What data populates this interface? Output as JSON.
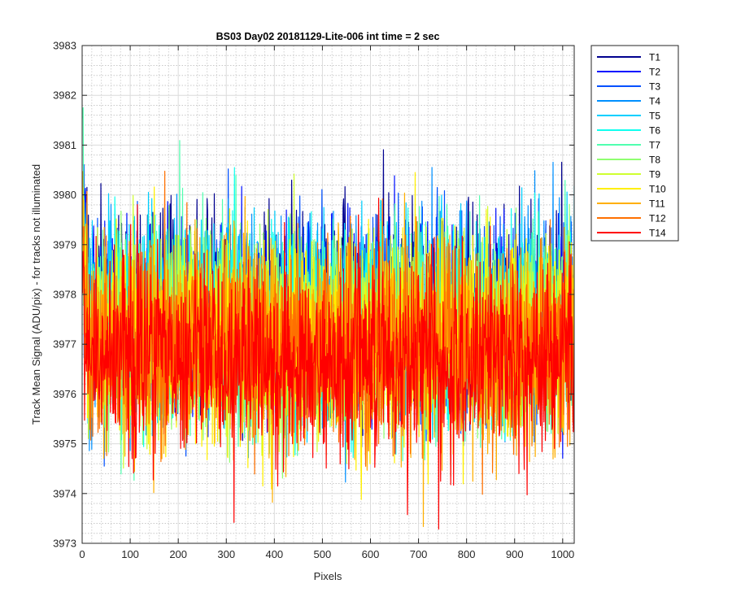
{
  "chart_data": {
    "type": "line",
    "title": "BS03 Day02 20181129-Lite-006 int time = 2 sec",
    "xlabel": "Pixels",
    "ylabel": "Track Mean Signal (ADU/pix) - for tracks not illuminated",
    "xlim": [
      0,
      1024
    ],
    "ylim": [
      3973,
      3983
    ],
    "x_ticks": [
      0,
      100,
      200,
      300,
      400,
      500,
      600,
      700,
      800,
      900,
      1000
    ],
    "y_ticks": [
      3973,
      3974,
      3975,
      3976,
      3977,
      3978,
      3979,
      3980,
      3981,
      3982,
      3983
    ],
    "grid": true,
    "minor_grid": true,
    "legend_position": "outside-top-right",
    "points_per_series": 1024,
    "series": [
      {
        "name": "T1",
        "color": "#00008f",
        "mean": 3977.7,
        "noise_sd": 0.95,
        "min": 3975.0,
        "max": 3981.1
      },
      {
        "name": "T2",
        "color": "#0010ff",
        "mean": 3977.6,
        "noise_sd": 0.95,
        "min": 3974.2,
        "max": 3981.5
      },
      {
        "name": "T3",
        "color": "#0050ff",
        "mean": 3977.5,
        "noise_sd": 0.95,
        "min": 3974.3,
        "max": 3980.9
      },
      {
        "name": "T4",
        "color": "#0090ff",
        "mean": 3977.5,
        "noise_sd": 0.95,
        "min": 3974.0,
        "max": 3980.8
      },
      {
        "name": "T5",
        "color": "#00cfff",
        "mean": 3977.5,
        "noise_sd": 0.95,
        "min": 3974.3,
        "max": 3980.8
      },
      {
        "name": "T6",
        "color": "#10ffef",
        "mean": 3977.4,
        "noise_sd": 0.95,
        "min": 3974.6,
        "max": 3980.6
      },
      {
        "name": "T7",
        "color": "#50ffaf",
        "mean": 3977.4,
        "noise_sd": 0.95,
        "min": 3973.8,
        "max": 3983.0
      },
      {
        "name": "T8",
        "color": "#8fff70",
        "mean": 3977.3,
        "noise_sd": 0.95,
        "min": 3974.3,
        "max": 3981.0
      },
      {
        "name": "T9",
        "color": "#cfff30",
        "mean": 3977.2,
        "noise_sd": 0.95,
        "min": 3974.2,
        "max": 3980.9
      },
      {
        "name": "T10",
        "color": "#ffef00",
        "mean": 3977.1,
        "noise_sd": 1.0,
        "min": 3973.1,
        "max": 3980.5
      },
      {
        "name": "T11",
        "color": "#ffaf00",
        "mean": 3977.0,
        "noise_sd": 1.0,
        "min": 3973.1,
        "max": 3980.6
      },
      {
        "name": "T12",
        "color": "#ff7000",
        "mean": 3976.9,
        "noise_sd": 1.0,
        "min": 3973.5,
        "max": 3980.5
      },
      {
        "name": "T14",
        "color": "#ff0000",
        "mean": 3976.7,
        "noise_sd": 1.0,
        "min": 3972.9,
        "max": 3980.1
      }
    ]
  }
}
